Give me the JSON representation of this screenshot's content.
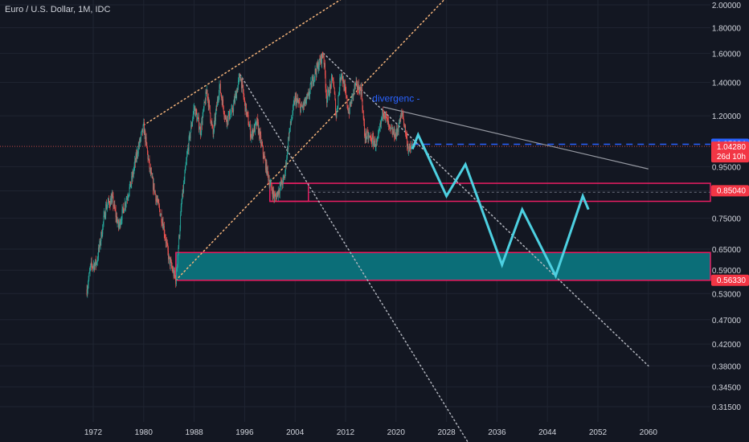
{
  "header": {
    "title": "Euro / U.S. Dollar, 1M, IDC"
  },
  "colors": {
    "background": "#131722",
    "grid": "#1f2431",
    "axis_text": "#d1d4dc",
    "candle_up": "#26a69a",
    "candle_down": "#ef5350",
    "trendline_dotted": "#f5b47a",
    "projection": "#4dd0e1",
    "zone_fill": "#0b6e78",
    "zone_border": "#e91e63",
    "current_price_bg": "#2962ff",
    "price_tag_bg": "#f23645",
    "resistance_line": "#9598a1",
    "annotation_text": "#2962ff"
  },
  "chart_data": {
    "type": "candlestick",
    "title": "Euro / U.S. Dollar, 1M, IDC",
    "x_ticks": [
      "1972",
      "1980",
      "1988",
      "1996",
      "2004",
      "2012",
      "2020",
      "2028",
      "2036",
      "2044",
      "2052",
      "2060"
    ],
    "y_ticks": [
      "2.00000",
      "1.80000",
      "1.60000",
      "1.40000",
      "1.20000",
      "0.95000",
      "0.85000",
      "0.75000",
      "0.65000",
      "0.59000",
      "0.53000",
      "0.47000",
      "0.42000",
      "0.38000",
      "0.34500",
      "0.31500"
    ],
    "y_scale": "log",
    "price_path": [
      [
        1971.0,
        0.54
      ],
      [
        1971.6,
        0.6
      ],
      [
        1972.5,
        0.61
      ],
      [
        1973.0,
        0.66
      ],
      [
        1974.0,
        0.79
      ],
      [
        1975.0,
        0.82
      ],
      [
        1976.0,
        0.72
      ],
      [
        1977.0,
        0.8
      ],
      [
        1978.0,
        0.88
      ],
      [
        1979.0,
        1.02
      ],
      [
        1980.0,
        1.14
      ],
      [
        1981.0,
        0.93
      ],
      [
        1982.0,
        0.82
      ],
      [
        1983.0,
        0.74
      ],
      [
        1984.0,
        0.62
      ],
      [
        1985.1,
        0.5633
      ],
      [
        1986.0,
        0.8
      ],
      [
        1987.0,
        1.03
      ],
      [
        1988.0,
        1.25
      ],
      [
        1989.0,
        1.12
      ],
      [
        1990.0,
        1.35
      ],
      [
        1991.0,
        1.1
      ],
      [
        1992.0,
        1.38
      ],
      [
        1993.0,
        1.18
      ],
      [
        1994.0,
        1.22
      ],
      [
        1995.3,
        1.45
      ],
      [
        1996.0,
        1.27
      ],
      [
        1997.0,
        1.1
      ],
      [
        1998.0,
        1.16
      ],
      [
        1999.0,
        1.0
      ],
      [
        2000.0,
        0.88
      ],
      [
        2000.8,
        0.82
      ],
      [
        2001.5,
        0.86
      ],
      [
        2002.3,
        0.9
      ],
      [
        2003.0,
        1.1
      ],
      [
        2004.0,
        1.3
      ],
      [
        2005.0,
        1.24
      ],
      [
        2006.0,
        1.3
      ],
      [
        2007.0,
        1.45
      ],
      [
        2008.5,
        1.6
      ],
      [
        2009.0,
        1.3
      ],
      [
        2010.0,
        1.43
      ],
      [
        2010.5,
        1.2
      ],
      [
        2011.3,
        1.48
      ],
      [
        2012.5,
        1.22
      ],
      [
        2013.5,
        1.38
      ],
      [
        2014.5,
        1.35
      ],
      [
        2015.0,
        1.1
      ],
      [
        2016.0,
        1.08
      ],
      [
        2017.0,
        1.05
      ],
      [
        2018.0,
        1.24
      ],
      [
        2019.0,
        1.12
      ],
      [
        2020.0,
        1.1
      ],
      [
        2021.0,
        1.22
      ],
      [
        2022.0,
        1.02
      ],
      [
        2022.6,
        1.0428
      ]
    ],
    "series": [
      {
        "name": "",
        "type": "projection",
        "points": [
          [
            2022.6,
            1.03
          ],
          [
            2023.5,
            1.1
          ],
          [
            2028.0,
            0.83
          ],
          [
            2031.0,
            0.96
          ],
          [
            2036.8,
            0.605
          ],
          [
            2040.0,
            0.78
          ],
          [
            2045.3,
            0.575
          ],
          [
            2049.6,
            0.83
          ],
          [
            2050.5,
            0.78
          ]
        ]
      }
    ],
    "trendlines": [
      {
        "style": "dotted",
        "points": [
          [
            1980.0,
            1.15
          ],
          [
            2030.0,
            2.9
          ]
        ]
      },
      {
        "style": "dotted",
        "points": [
          [
            1985.1,
            0.5633
          ],
          [
            2030.0,
            2.2
          ]
        ]
      },
      {
        "style": "dotted",
        "points": [
          [
            1995.3,
            1.45
          ],
          [
            2032.0,
            0.26
          ]
        ]
      },
      {
        "style": "dotted",
        "points": [
          [
            2008.5,
            1.6
          ],
          [
            2060.0,
            0.38
          ]
        ]
      },
      {
        "style": "solid",
        "points": [
          [
            2018.0,
            1.25
          ],
          [
            2060.0,
            0.94
          ]
        ]
      }
    ],
    "zones": [
      {
        "x_from": 1985.1,
        "y_from": 0.5633,
        "y_to": 0.64,
        "style": "filled"
      },
      {
        "x_from": 2000.0,
        "y_from": 0.81,
        "y_to": 0.88,
        "style": "outline"
      }
    ],
    "horizontal_levels": [
      {
        "y": 1.05334,
        "style": "dashed-blue",
        "label": "1.05334"
      },
      {
        "y": 1.0428,
        "style": "dotted-red"
      }
    ],
    "price_labels": [
      {
        "y": 1.05334,
        "text": "1.05334",
        "kind": "blue"
      },
      {
        "y": 1.0428,
        "text": "1.04280",
        "subtext": "26d 10h",
        "kind": "red"
      },
      {
        "y": 0.8504,
        "text": "0.85040",
        "kind": "red"
      },
      {
        "y": 0.5633,
        "text": "0.56330",
        "kind": "red"
      }
    ],
    "annotation": {
      "text": "divergenc -",
      "x": 2017.5,
      "y": 1.3
    }
  }
}
